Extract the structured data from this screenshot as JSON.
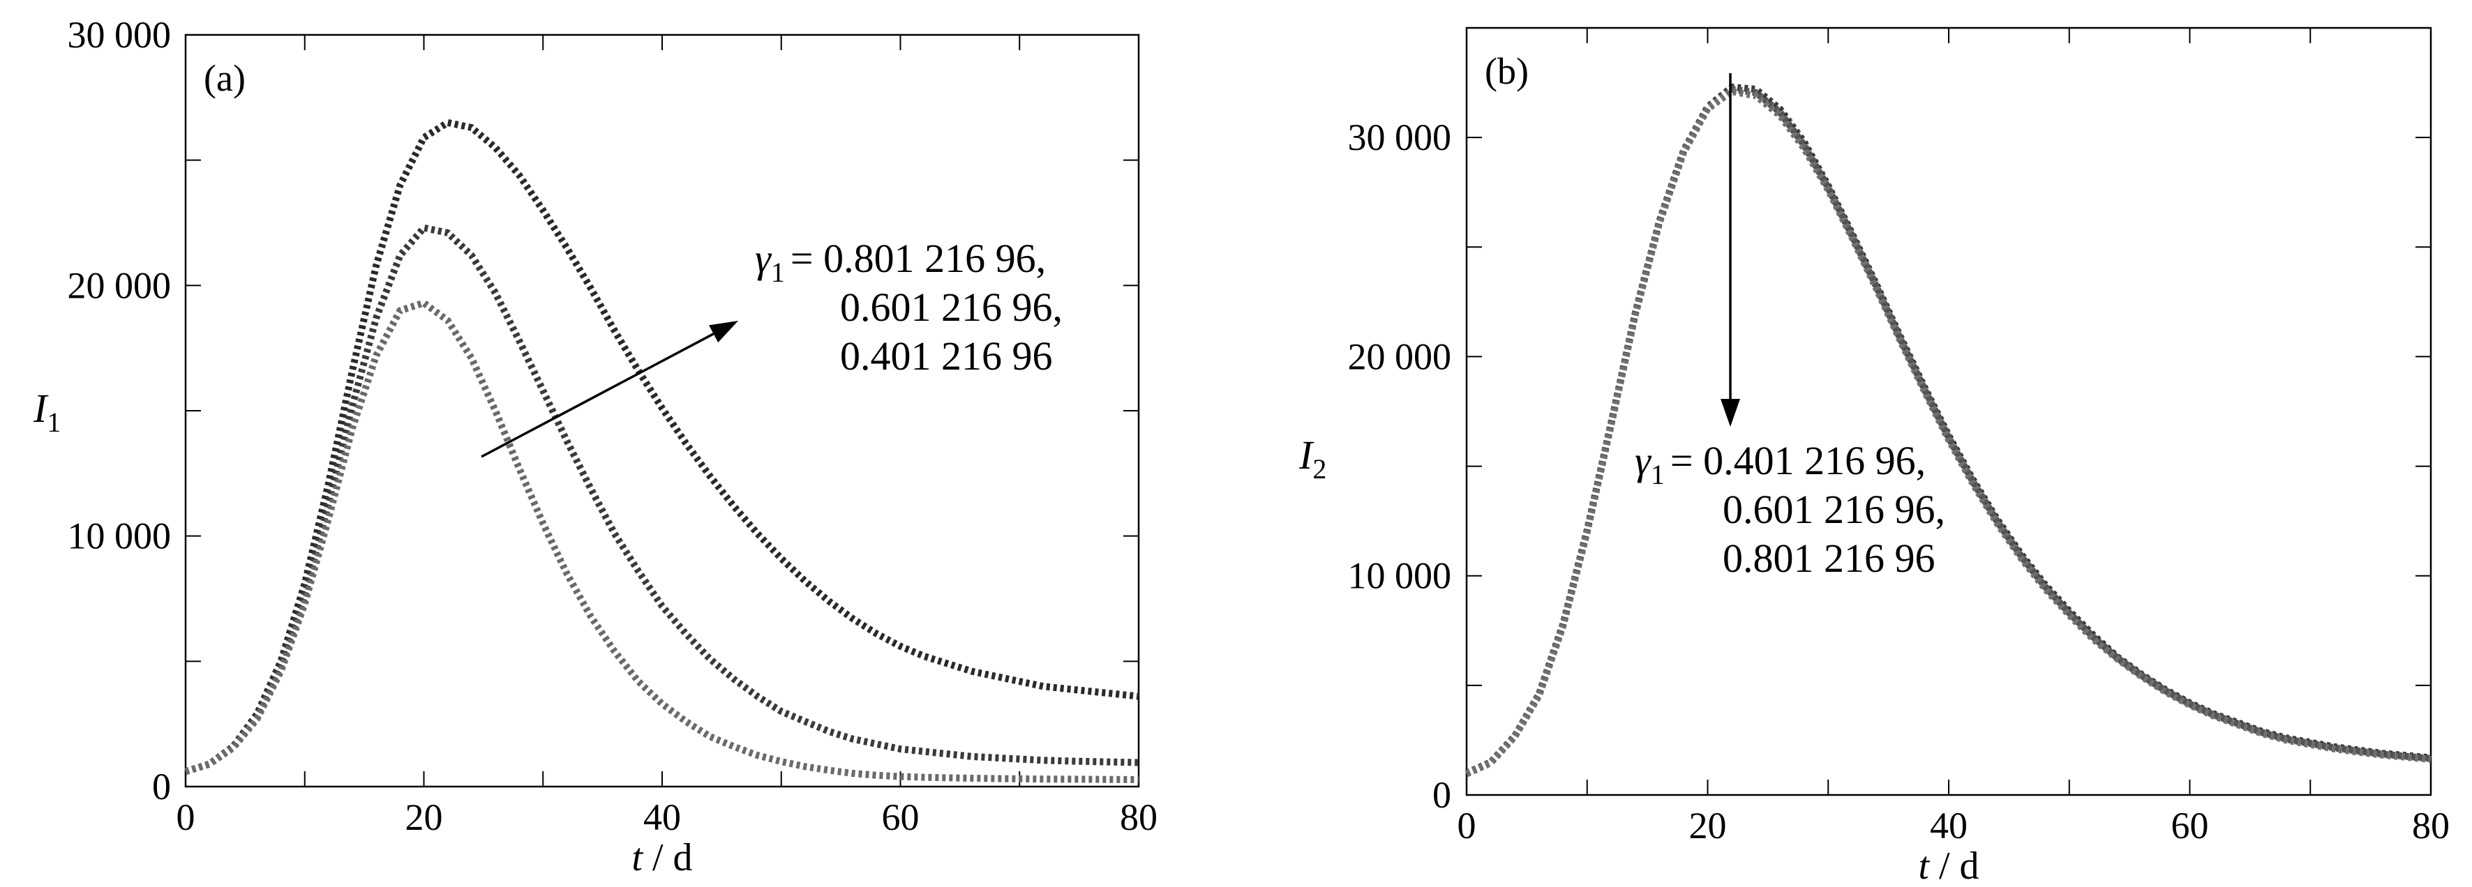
{
  "chart_data": [
    {
      "type": "line",
      "panel_label": "(a)",
      "xlabel_var": "t",
      "xlabel_unit": " / d",
      "ylabel_var": "I",
      "ylabel_sub": "1",
      "xlim": [
        0,
        80
      ],
      "ylim": [
        0,
        30000
      ],
      "xticks": [
        0,
        20,
        40,
        60,
        80
      ],
      "xtick_labels": [
        "0",
        "20",
        "40",
        "60",
        "80"
      ],
      "yticks": [
        0,
        10000,
        20000,
        30000
      ],
      "ytick_labels": [
        "0",
        "10 000",
        "20 000",
        "30 000"
      ],
      "grid": false,
      "x": [
        0,
        2,
        4,
        6,
        8,
        10,
        12,
        14,
        16,
        18,
        20,
        22,
        24,
        26,
        28,
        30,
        32,
        34,
        36,
        38,
        40,
        42,
        44,
        46,
        48,
        50,
        52,
        54,
        56,
        58,
        60,
        62,
        64,
        66,
        68,
        70,
        72,
        74,
        76,
        78,
        80
      ],
      "series": [
        {
          "color": "#2a2a2a",
          "values": [
            600,
            900,
            1600,
            2900,
            5000,
            8100,
            12100,
            16600,
            20800,
            24000,
            25900,
            26500,
            26300,
            25500,
            24400,
            23000,
            21500,
            19900,
            18200,
            16600,
            15100,
            13700,
            12400,
            11200,
            10100,
            9100,
            8200,
            7400,
            6700,
            6100,
            5600,
            5200,
            4900,
            4600,
            4400,
            4200,
            4000,
            3900,
            3800,
            3700,
            3600
          ]
        },
        {
          "color": "#3a3a3a",
          "values": [
            600,
            900,
            1600,
            2800,
            4800,
            7600,
            11300,
            15200,
            18700,
            21200,
            22300,
            22100,
            21200,
            19700,
            17800,
            15800,
            13800,
            11900,
            10100,
            8600,
            7200,
            6100,
            5100,
            4300,
            3600,
            3000,
            2600,
            2200,
            1900,
            1700,
            1500,
            1400,
            1300,
            1200,
            1150,
            1100,
            1050,
            1020,
            1000,
            980,
            960
          ]
        },
        {
          "color": "#6a6a6a",
          "values": [
            600,
            900,
            1550,
            2700,
            4600,
            7300,
            10700,
            14300,
            17200,
            19000,
            19300,
            18600,
            17100,
            15000,
            12700,
            10500,
            8500,
            6800,
            5400,
            4200,
            3300,
            2600,
            2000,
            1600,
            1250,
            1000,
            800,
            650,
            530,
            450,
            400,
            370,
            350,
            335,
            320,
            310,
            300,
            295,
            290,
            285,
            280
          ]
        }
      ],
      "annotation": {
        "symbol": "γ",
        "sub": "1",
        "lines": [
          "= 0.801 216 96,",
          "0.601 216 96,",
          "0.401 216 96"
        ]
      }
    },
    {
      "type": "line",
      "panel_label": "(b)",
      "xlabel_var": "t",
      "xlabel_unit": " / d",
      "ylabel_var": "I",
      "ylabel_sub": "2",
      "xlim": [
        0,
        80
      ],
      "ylim": [
        0,
        35000
      ],
      "xticks": [
        0,
        20,
        40,
        60,
        80
      ],
      "xtick_labels": [
        "0",
        "20",
        "40",
        "60",
        "80"
      ],
      "yticks": [
        0,
        10000,
        20000,
        30000
      ],
      "ytick_labels": [
        "0",
        "10 000",
        "20 000",
        "30 000"
      ],
      "grid": false,
      "x": [
        0,
        2,
        4,
        6,
        8,
        10,
        12,
        14,
        16,
        18,
        20,
        22,
        24,
        26,
        28,
        30,
        32,
        34,
        36,
        38,
        40,
        42,
        44,
        46,
        48,
        50,
        52,
        54,
        56,
        58,
        60,
        62,
        64,
        66,
        68,
        70,
        72,
        74,
        76,
        78,
        80
      ],
      "series": [
        {
          "color": "#3a3a3a",
          "values": [
            1000,
            1500,
            2700,
            4600,
            7800,
            12100,
            17000,
            22000,
            26200,
            29400,
            31400,
            32300,
            32200,
            31300,
            29800,
            27800,
            25600,
            23300,
            20900,
            18600,
            16400,
            14400,
            12600,
            11000,
            9600,
            8400,
            7300,
            6300,
            5500,
            4800,
            4200,
            3700,
            3300,
            2900,
            2600,
            2400,
            2200,
            2050,
            1900,
            1800,
            1700
          ]
        },
        {
          "color": "#555555",
          "values": [
            980,
            1480,
            2680,
            4560,
            7750,
            12050,
            16950,
            21950,
            26150,
            29350,
            31350,
            32200,
            32050,
            31150,
            29650,
            27700,
            25500,
            23200,
            20800,
            18500,
            16300,
            14300,
            12500,
            10900,
            9500,
            8300,
            7200,
            6250,
            5450,
            4750,
            4150,
            3650,
            3250,
            2850,
            2550,
            2350,
            2150,
            2000,
            1860,
            1760,
            1660
          ]
        },
        {
          "color": "#707070",
          "values": [
            960,
            1460,
            2660,
            4520,
            7700,
            12000,
            16900,
            21900,
            26100,
            29300,
            31300,
            32100,
            31900,
            31000,
            29500,
            27600,
            25400,
            23100,
            20700,
            18400,
            16200,
            14200,
            12400,
            10800,
            9400,
            8200,
            7100,
            6200,
            5400,
            4700,
            4100,
            3600,
            3200,
            2800,
            2500,
            2300,
            2100,
            1950,
            1820,
            1720,
            1620
          ]
        }
      ],
      "annotation": {
        "symbol": "γ",
        "sub": "1",
        "lines": [
          "= 0.401 216 96,",
          "0.601 216 96,",
          "0.801 216 96"
        ]
      }
    }
  ]
}
